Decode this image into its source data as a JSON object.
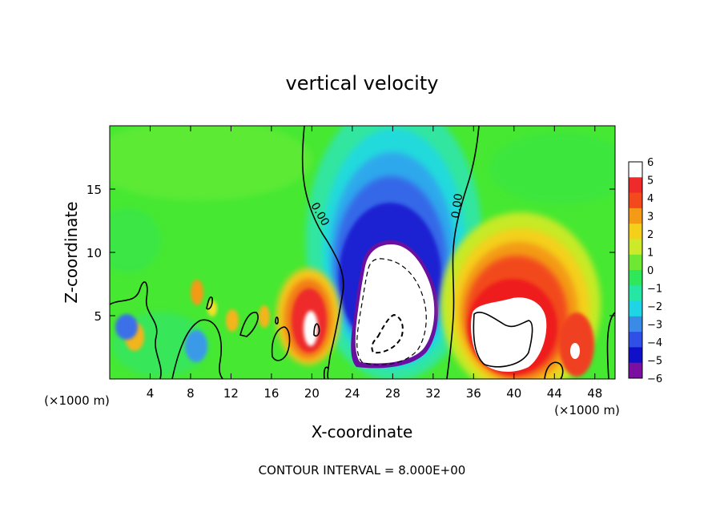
{
  "chart_data": {
    "type": "heatmap",
    "title": "vertical velocity",
    "xlabel": "X-coordinate",
    "ylabel": "Z-coordinate",
    "x_unit_left": "(×1000 m)",
    "x_unit_right": "(×1000 m)",
    "xlim": [
      0,
      50
    ],
    "ylim": [
      0,
      20
    ],
    "x_ticks": [
      4,
      8,
      12,
      16,
      20,
      24,
      28,
      32,
      36,
      40,
      44,
      48
    ],
    "y_ticks": [
      5,
      10,
      15
    ],
    "colorbar": {
      "levels": [
        -6,
        -5,
        -4,
        -3,
        -2,
        -1,
        0,
        1,
        2,
        3,
        4,
        5,
        6
      ],
      "tick_labels": [
        "6",
        "5",
        "4",
        "3",
        "2",
        "1",
        "0",
        "−1",
        "−2",
        "−3",
        "−4",
        "−5",
        "−6"
      ],
      "colors": [
        "#7a0fa0",
        "#1010c8",
        "#2f4fe6",
        "#3a8ae8",
        "#1fd4e4",
        "#26e6a6",
        "#2ee85a",
        "#6ee832",
        "#cdea2a",
        "#f4d01a",
        "#f49a16",
        "#f24a1c",
        "#ee2a2a",
        "#ffffff"
      ]
    },
    "contour_label": "0.00",
    "contour_interval_text": "CONTOUR INTERVAL = 8.000E+00"
  }
}
